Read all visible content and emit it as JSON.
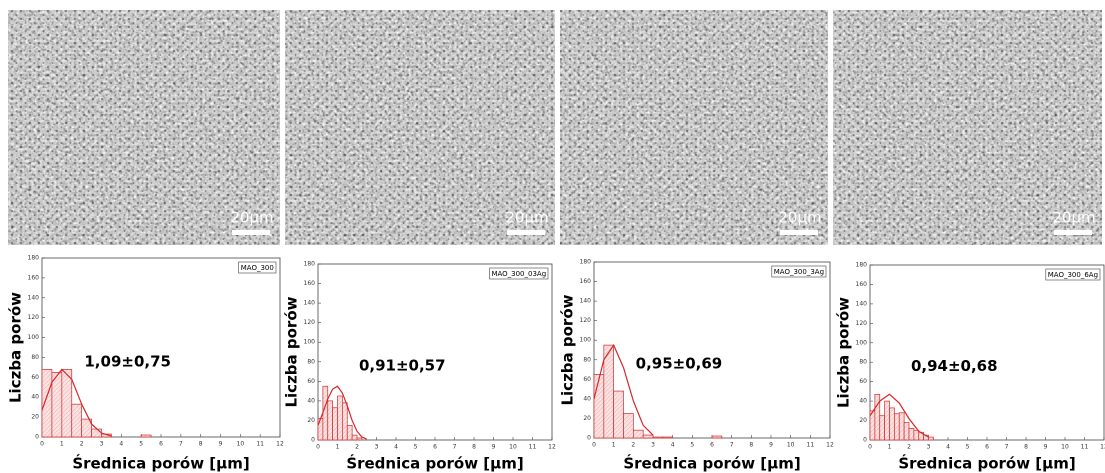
{
  "images": [
    {
      "scale_label": "20µm"
    },
    {
      "scale_label": "20µm"
    },
    {
      "scale_label": "20µm"
    },
    {
      "scale_label": "20µm"
    }
  ],
  "chart_data": [
    {
      "type": "histogram",
      "legend_label": "MAO_300",
      "annotation": "1,09±0,75",
      "xlabel": "Średnica porów [µm]",
      "ylabel": "Liczba porów",
      "color": "#d62728",
      "bins": [
        0,
        0.5,
        1,
        1.5,
        2,
        2.5,
        3,
        3.5,
        4,
        4.5,
        5,
        5.5
      ],
      "values": [
        68,
        65,
        68,
        33,
        18,
        8,
        3,
        0,
        0,
        0,
        2
      ],
      "fit": {
        "x": [
          0,
          0.5,
          1,
          1.5,
          2,
          2.5,
          3,
          3.5
        ],
        "y": [
          27,
          55,
          68,
          58,
          33,
          13,
          4,
          1
        ]
      },
      "xlim": [
        0,
        12
      ],
      "ylim": [
        0,
        180
      ],
      "xticks": [
        0,
        1,
        2,
        3,
        4,
        5,
        6,
        7,
        8,
        9,
        10,
        11,
        12
      ],
      "yticks": [
        0,
        20,
        40,
        60,
        80,
        100,
        120,
        140,
        160,
        180
      ]
    },
    {
      "type": "histogram",
      "legend_label": "MAO_300_03Ag",
      "annotation": "0,91±0,57",
      "xlabel": "Średnica porów [µm]",
      "ylabel": "Liczba porów",
      "color": "#d62728",
      "bins": [
        0,
        0.25,
        0.5,
        0.75,
        1,
        1.25,
        1.5,
        1.75,
        2,
        2.25
      ],
      "values": [
        22,
        55,
        40,
        33,
        45,
        38,
        15,
        5,
        2
      ],
      "fit": {
        "x": [
          0,
          0.25,
          0.5,
          0.75,
          1,
          1.25,
          1.5,
          1.75,
          2,
          2.25,
          2.5
        ],
        "y": [
          15,
          28,
          42,
          52,
          55,
          48,
          35,
          20,
          9,
          3,
          1
        ]
      },
      "xlim": [
        0,
        12
      ],
      "ylim": [
        0,
        180
      ],
      "xticks": [
        0,
        1,
        2,
        3,
        4,
        5,
        6,
        7,
        8,
        9,
        10,
        11,
        12
      ],
      "yticks": [
        0,
        20,
        40,
        60,
        80,
        100,
        120,
        140,
        160,
        180
      ]
    },
    {
      "type": "histogram",
      "legend_label": "MAO_300_3Ag",
      "annotation": "0,95±0,69",
      "xlabel": "Średnica porów [µm]",
      "ylabel": "Liczba porów",
      "color": "#d62728",
      "bins": [
        0,
        0.5,
        1,
        1.5,
        2,
        2.5,
        3,
        3.5,
        4,
        4.5,
        5,
        5.5,
        6,
        6.5
      ],
      "values": [
        65,
        95,
        48,
        25,
        8,
        3,
        1,
        1,
        0,
        0,
        0,
        0,
        2
      ],
      "fit": {
        "x": [
          0,
          0.5,
          1,
          1.5,
          2,
          2.5,
          3
        ],
        "y": [
          40,
          80,
          95,
          72,
          38,
          13,
          3
        ]
      },
      "xlim": [
        0,
        12
      ],
      "ylim": [
        0,
        180
      ],
      "xticks": [
        0,
        1,
        2,
        3,
        4,
        5,
        6,
        7,
        8,
        9,
        10,
        11,
        12
      ],
      "yticks": [
        0,
        20,
        40,
        60,
        80,
        100,
        120,
        140,
        160,
        180
      ]
    },
    {
      "type": "histogram",
      "legend_label": "MAO_300_6Ag",
      "annotation": "0,94±0,68",
      "xlabel": "Średnica porów [µm]",
      "ylabel": "Liczba porów",
      "color": "#d62728",
      "bins": [
        0,
        0.25,
        0.5,
        0.75,
        1,
        1.25,
        1.5,
        1.75,
        2,
        2.25,
        2.5,
        2.75,
        3,
        3.25
      ],
      "values": [
        30,
        47,
        25,
        40,
        33,
        27,
        28,
        18,
        12,
        10,
        8,
        5,
        3
      ],
      "fit": {
        "x": [
          0,
          0.5,
          1,
          1.5,
          2,
          2.5,
          3
        ],
        "y": [
          25,
          40,
          47,
          38,
          22,
          9,
          3
        ]
      },
      "xlim": [
        0,
        12
      ],
      "ylim": [
        0,
        180
      ],
      "xticks": [
        0,
        1,
        2,
        3,
        4,
        5,
        6,
        7,
        8,
        9,
        10,
        11,
        12
      ],
      "yticks": [
        0,
        20,
        40,
        60,
        80,
        100,
        120,
        140,
        160,
        180
      ]
    }
  ]
}
